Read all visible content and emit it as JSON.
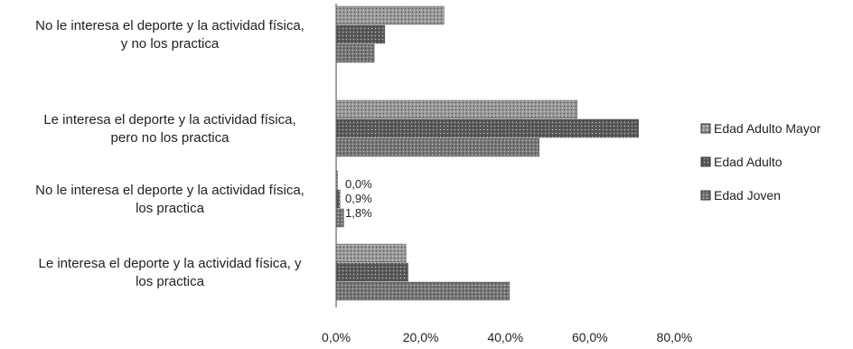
{
  "chart_data": {
    "type": "bar",
    "orientation": "horizontal",
    "categories": [
      [
        "No le interesa el deporte y la actividad física,",
        "y no los practica"
      ],
      [
        "Le interesa el deporte y la actividad física,",
        "pero no los practica"
      ],
      [
        "No le interesa el deporte y la actividad física,",
        "los practica"
      ],
      [
        "Le interesa el deporte y la actividad física, y",
        "los practica"
      ]
    ],
    "series": [
      {
        "name": "Edad Adulto Mayor",
        "values": [
          25.5,
          57.0,
          0.0,
          16.5
        ],
        "color": "#9a9a9a"
      },
      {
        "name": "Edad Adulto",
        "values": [
          11.5,
          71.5,
          0.9,
          17.0
        ],
        "color": "#5a5a5a"
      },
      {
        "name": "Edad Joven",
        "values": [
          9.0,
          48.0,
          1.8,
          41.0
        ],
        "color": "#777777"
      }
    ],
    "data_labels": [
      {
        "category_index": 2,
        "labels": [
          "0,0%",
          "0,9%",
          "1,8%"
        ]
      }
    ],
    "x_ticks": [
      "0,0%",
      "20,0%",
      "40,0%",
      "60,0%",
      "80,0%"
    ],
    "xlim": [
      0,
      80
    ],
    "grid": false,
    "legend_position": "right"
  }
}
